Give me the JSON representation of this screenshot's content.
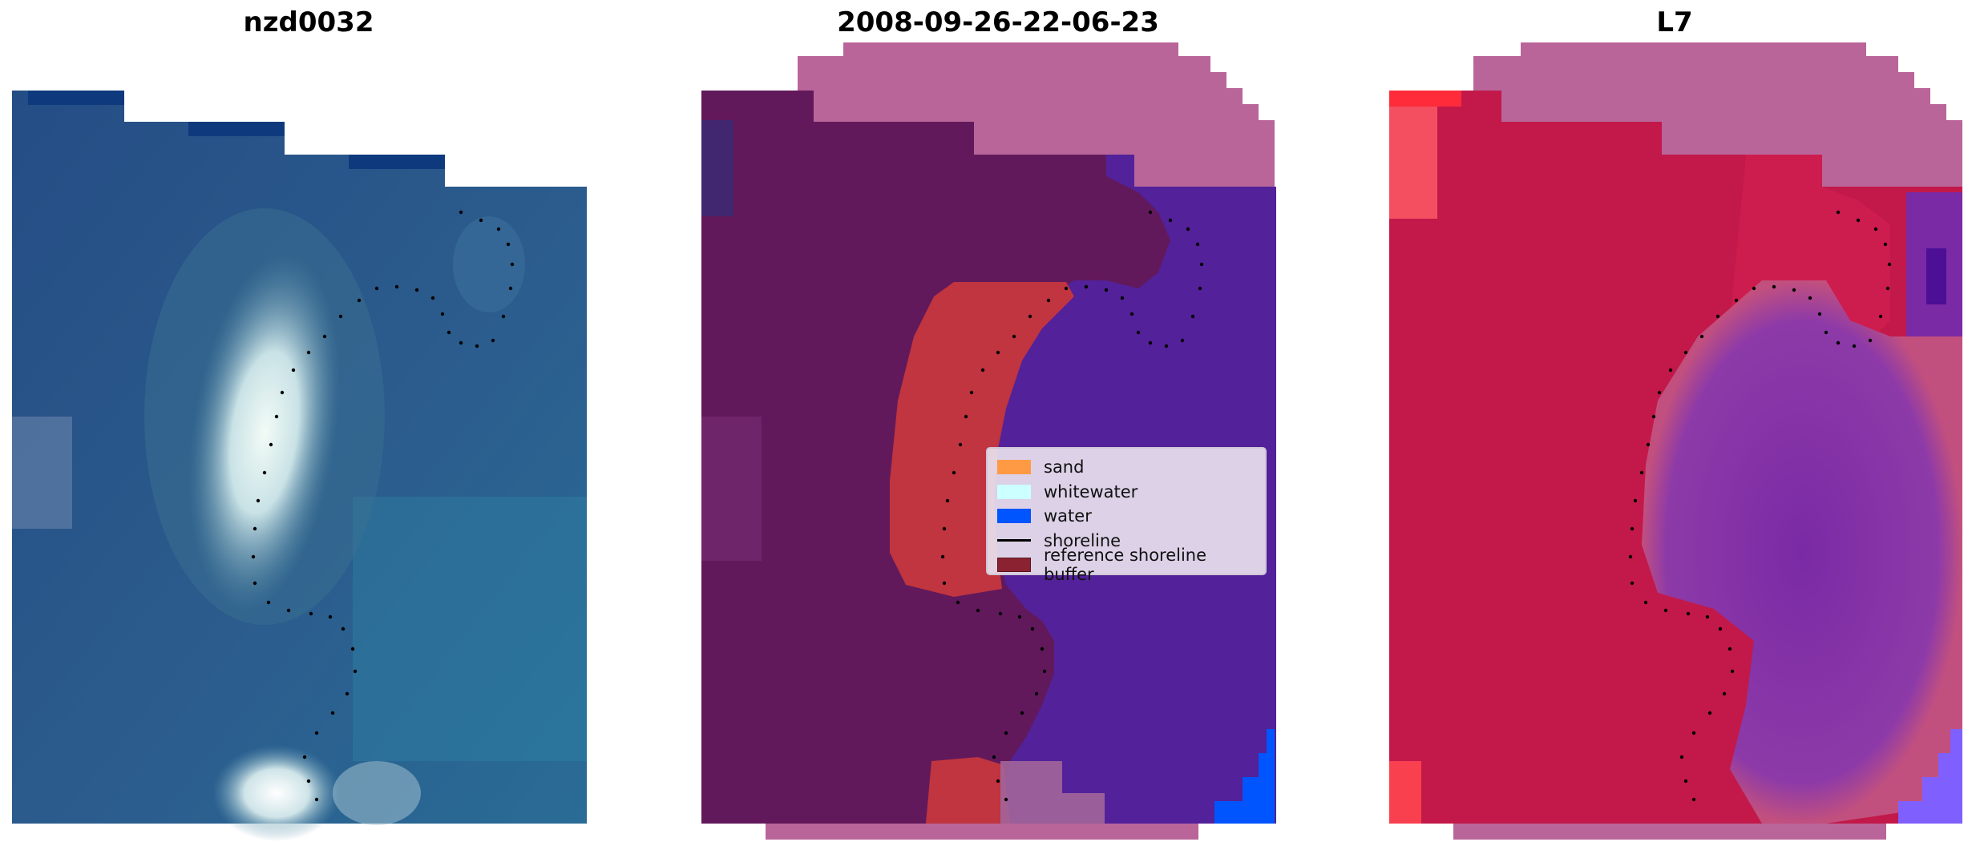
{
  "panels": [
    {
      "title": "nzd0032"
    },
    {
      "title": "2008-09-26-22-06-23"
    },
    {
      "title": "L7"
    }
  ],
  "legend": {
    "items": [
      {
        "label": "sand",
        "color": "#ff9a44",
        "kind": "patch"
      },
      {
        "label": "whitewater",
        "color": "#ccffff",
        "kind": "patch"
      },
      {
        "label": "water",
        "color": "#0055ff",
        "kind": "patch"
      },
      {
        "label": "shoreline",
        "color": "#000000",
        "kind": "line"
      },
      {
        "label": "reference shoreline buffer",
        "color": "#8b2231",
        "kind": "patch"
      }
    ]
  },
  "colors": {
    "ocean_rgb": "#1e4a86",
    "shoal_rgb": "#d8ecec",
    "overlay_pink": "#b9659a",
    "overlay_purple": "#532199",
    "overlay_maroon": "#62195b",
    "buffer_red": "#c0353f",
    "ndwi_red": "#c2143f",
    "ndwi_purple": "#7a2aa5"
  }
}
